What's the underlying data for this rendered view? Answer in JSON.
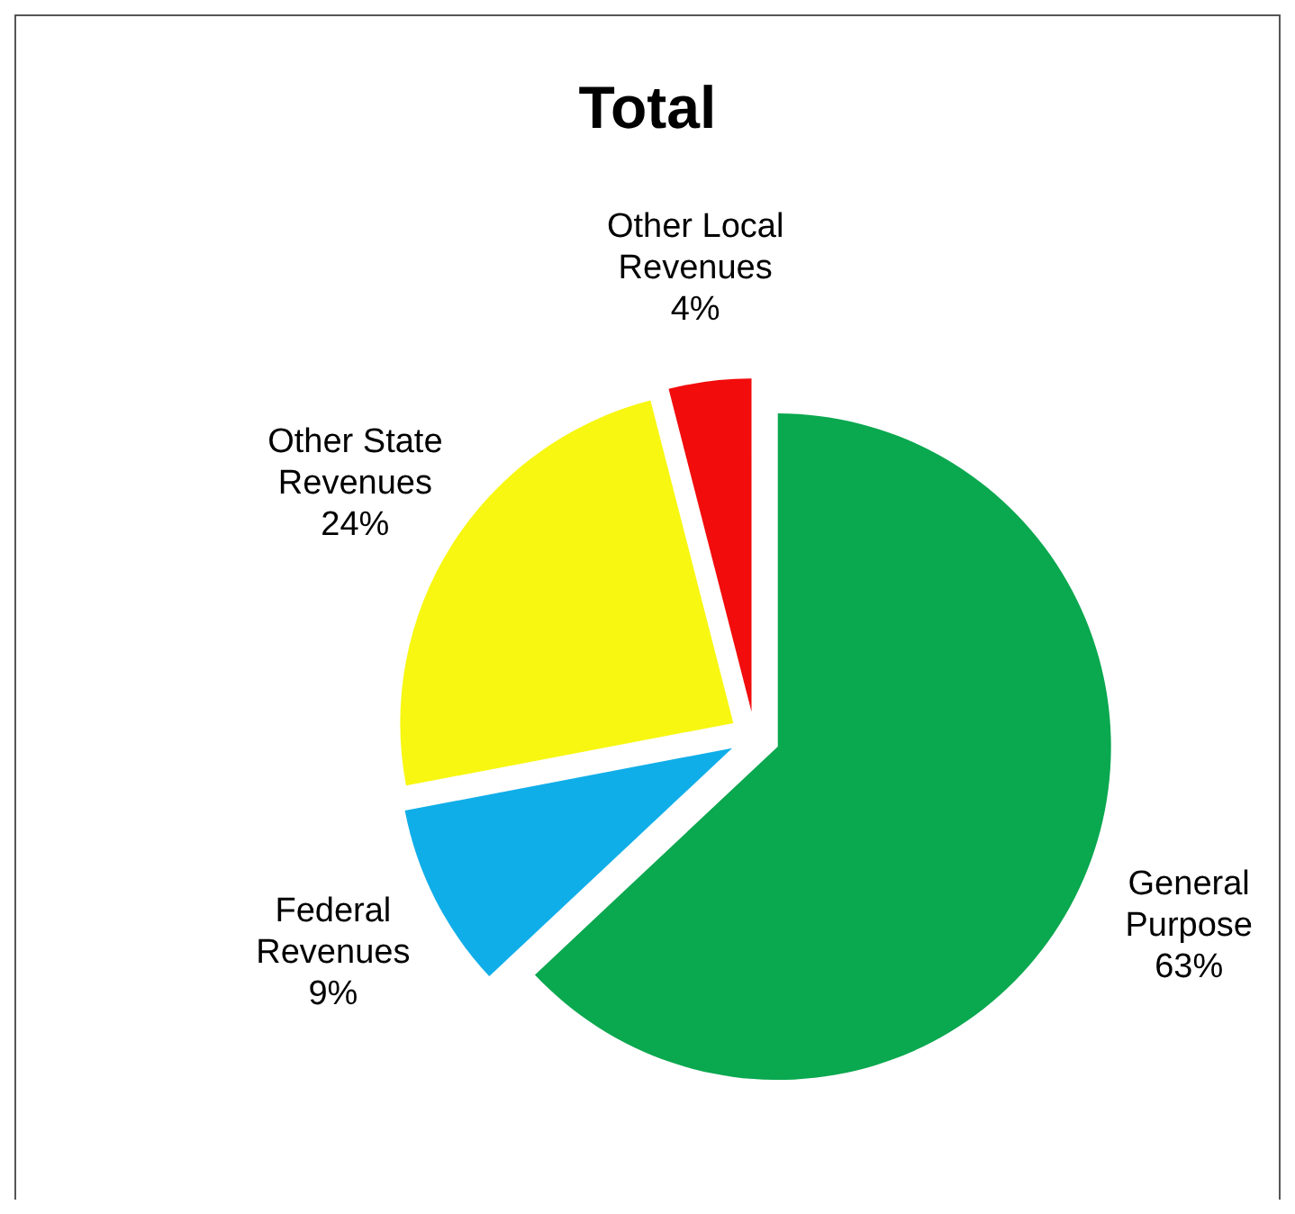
{
  "chart_data": {
    "type": "pie",
    "title": "Total",
    "categories": [
      "General Purpose",
      "Federal Revenues",
      "Other State Revenues",
      "Other Local Revenues"
    ],
    "values": [
      63,
      9,
      24,
      4
    ],
    "value_labels": [
      "63%",
      "9%",
      "24%",
      "4%"
    ],
    "colors": [
      "#0aa84f",
      "#10aee8",
      "#f7f712",
      "#f20c0c"
    ]
  }
}
